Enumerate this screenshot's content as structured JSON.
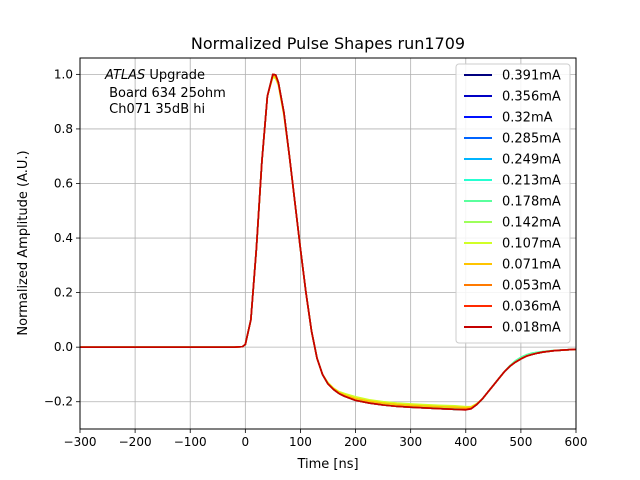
{
  "chart_data": {
    "type": "line",
    "title": "Normalized Pulse Shapes run1709",
    "xlabel": "Time [ns]",
    "ylabel": "Normalized Amplitude (A.U.)",
    "xlim": [
      -300,
      600
    ],
    "ylim": [
      -0.3,
      1.06
    ],
    "xticks": [
      -300,
      -200,
      -100,
      0,
      100,
      200,
      300,
      400,
      500,
      600
    ],
    "xtick_labels": [
      "−300",
      "−200",
      "−100",
      "0",
      "100",
      "200",
      "300",
      "400",
      "500",
      "600"
    ],
    "yticks": [
      -0.2,
      0.0,
      0.2,
      0.4,
      0.6,
      0.8,
      1.0
    ],
    "ytick_labels": [
      "−0.2",
      "0.0",
      "0.2",
      "0.4",
      "0.6",
      "0.8",
      "1.0"
    ],
    "grid": true,
    "legend_position": "top-right",
    "annotation": {
      "line1_italic": "ATLAS",
      "line1_rest": " Upgrade",
      "line2": " Board 634 25ohm",
      "line3": " Ch071 35dB hi"
    },
    "x": [
      -300,
      -200,
      -100,
      -20,
      -5,
      0,
      10,
      20,
      30,
      40,
      50,
      55,
      60,
      70,
      80,
      90,
      100,
      110,
      120,
      130,
      140,
      150,
      160,
      170,
      180,
      200,
      225,
      250,
      275,
      300,
      350,
      380,
      400,
      410,
      420,
      430,
      440,
      450,
      460,
      470,
      480,
      490,
      500,
      510,
      520,
      530,
      540,
      560,
      580,
      600
    ],
    "series": [
      {
        "name": "0.391mA",
        "color": "#00007f",
        "values": [
          0.0,
          0.0,
          0.0,
          0.0,
          0.002,
          0.01,
          0.1,
          0.36,
          0.68,
          0.92,
          1.0,
          0.998,
          0.97,
          0.86,
          0.7,
          0.53,
          0.36,
          0.2,
          0.06,
          -0.04,
          -0.1,
          -0.135,
          -0.155,
          -0.17,
          -0.18,
          -0.195,
          -0.205,
          -0.212,
          -0.217,
          -0.22,
          -0.225,
          -0.228,
          -0.228,
          -0.225,
          -0.21,
          -0.19,
          -0.165,
          -0.14,
          -0.115,
          -0.09,
          -0.07,
          -0.055,
          -0.043,
          -0.033,
          -0.027,
          -0.022,
          -0.018,
          -0.013,
          -0.01,
          -0.008
        ]
      },
      {
        "name": "0.356mA",
        "color": "#0000c4",
        "values": [
          0.0,
          0.0,
          0.0,
          0.0,
          0.002,
          0.01,
          0.1,
          0.36,
          0.68,
          0.92,
          1.0,
          0.998,
          0.97,
          0.86,
          0.7,
          0.53,
          0.36,
          0.2,
          0.06,
          -0.04,
          -0.1,
          -0.135,
          -0.155,
          -0.17,
          -0.18,
          -0.195,
          -0.205,
          -0.212,
          -0.217,
          -0.22,
          -0.225,
          -0.228,
          -0.228,
          -0.225,
          -0.21,
          -0.19,
          -0.165,
          -0.14,
          -0.115,
          -0.09,
          -0.07,
          -0.055,
          -0.043,
          -0.033,
          -0.027,
          -0.022,
          -0.018,
          -0.013,
          -0.01,
          -0.008
        ]
      },
      {
        "name": "0.32mA",
        "color": "#0010ff",
        "values": [
          0.0,
          0.0,
          0.0,
          0.0,
          0.002,
          0.01,
          0.1,
          0.36,
          0.68,
          0.92,
          1.0,
          0.998,
          0.97,
          0.86,
          0.7,
          0.53,
          0.36,
          0.2,
          0.06,
          -0.04,
          -0.1,
          -0.135,
          -0.155,
          -0.17,
          -0.18,
          -0.195,
          -0.205,
          -0.212,
          -0.217,
          -0.22,
          -0.225,
          -0.228,
          -0.228,
          -0.225,
          -0.21,
          -0.19,
          -0.165,
          -0.14,
          -0.115,
          -0.09,
          -0.07,
          -0.055,
          -0.043,
          -0.033,
          -0.027,
          -0.022,
          -0.018,
          -0.013,
          -0.01,
          -0.008
        ]
      },
      {
        "name": "0.285mA",
        "color": "#0064ff",
        "values": [
          0.0,
          0.0,
          0.0,
          0.0,
          0.002,
          0.01,
          0.1,
          0.36,
          0.68,
          0.92,
          1.0,
          0.998,
          0.97,
          0.86,
          0.7,
          0.53,
          0.36,
          0.2,
          0.06,
          -0.04,
          -0.1,
          -0.135,
          -0.155,
          -0.17,
          -0.18,
          -0.195,
          -0.205,
          -0.212,
          -0.217,
          -0.22,
          -0.225,
          -0.228,
          -0.228,
          -0.225,
          -0.21,
          -0.19,
          -0.165,
          -0.14,
          -0.115,
          -0.09,
          -0.07,
          -0.055,
          -0.043,
          -0.033,
          -0.027,
          -0.022,
          -0.018,
          -0.013,
          -0.01,
          -0.008
        ]
      },
      {
        "name": "0.249mA",
        "color": "#00b4ff",
        "values": [
          0.0,
          0.0,
          0.0,
          0.0,
          0.002,
          0.01,
          0.1,
          0.36,
          0.68,
          0.92,
          1.0,
          0.998,
          0.97,
          0.86,
          0.7,
          0.53,
          0.36,
          0.2,
          0.06,
          -0.04,
          -0.1,
          -0.135,
          -0.155,
          -0.17,
          -0.18,
          -0.195,
          -0.205,
          -0.212,
          -0.217,
          -0.22,
          -0.225,
          -0.228,
          -0.228,
          -0.225,
          -0.21,
          -0.19,
          -0.165,
          -0.14,
          -0.115,
          -0.09,
          -0.07,
          -0.053,
          -0.04,
          -0.03,
          -0.024,
          -0.02,
          -0.017,
          -0.013,
          -0.01,
          -0.008
        ]
      },
      {
        "name": "0.213mA",
        "color": "#26ffd1",
        "values": [
          0.0,
          0.0,
          0.0,
          0.0,
          0.002,
          0.01,
          0.1,
          0.36,
          0.68,
          0.92,
          1.0,
          0.998,
          0.97,
          0.86,
          0.7,
          0.53,
          0.36,
          0.2,
          0.06,
          -0.04,
          -0.1,
          -0.135,
          -0.155,
          -0.17,
          -0.18,
          -0.195,
          -0.205,
          -0.212,
          -0.217,
          -0.22,
          -0.225,
          -0.228,
          -0.228,
          -0.225,
          -0.21,
          -0.19,
          -0.165,
          -0.14,
          -0.115,
          -0.09,
          -0.068,
          -0.05,
          -0.037,
          -0.028,
          -0.022,
          -0.019,
          -0.016,
          -0.012,
          -0.01,
          -0.008
        ]
      },
      {
        "name": "0.178mA",
        "color": "#5aff9d",
        "values": [
          0.0,
          0.0,
          0.0,
          0.0,
          0.002,
          0.01,
          0.1,
          0.36,
          0.68,
          0.92,
          1.0,
          0.998,
          0.97,
          0.86,
          0.7,
          0.53,
          0.36,
          0.2,
          0.06,
          -0.04,
          -0.1,
          -0.135,
          -0.155,
          -0.17,
          -0.18,
          -0.195,
          -0.205,
          -0.212,
          -0.217,
          -0.22,
          -0.225,
          -0.228,
          -0.228,
          -0.225,
          -0.21,
          -0.19,
          -0.165,
          -0.14,
          -0.115,
          -0.09,
          -0.068,
          -0.05,
          -0.037,
          -0.028,
          -0.022,
          -0.019,
          -0.016,
          -0.012,
          -0.01,
          -0.008
        ]
      },
      {
        "name": "0.142mA",
        "color": "#9dff5a",
        "values": [
          0.0,
          0.0,
          0.0,
          0.0,
          0.002,
          0.01,
          0.1,
          0.36,
          0.68,
          0.92,
          1.0,
          0.998,
          0.97,
          0.86,
          0.7,
          0.53,
          0.36,
          0.2,
          0.06,
          -0.04,
          -0.1,
          -0.135,
          -0.155,
          -0.168,
          -0.176,
          -0.19,
          -0.2,
          -0.207,
          -0.212,
          -0.215,
          -0.22,
          -0.222,
          -0.224,
          -0.222,
          -0.21,
          -0.19,
          -0.165,
          -0.14,
          -0.115,
          -0.09,
          -0.07,
          -0.055,
          -0.043,
          -0.033,
          -0.027,
          -0.022,
          -0.018,
          -0.013,
          -0.01,
          -0.008
        ]
      },
      {
        "name": "0.107mA",
        "color": "#d1ff26",
        "values": [
          0.0,
          0.0,
          0.0,
          0.0,
          0.002,
          0.01,
          0.1,
          0.36,
          0.68,
          0.92,
          0.99,
          0.985,
          0.96,
          0.85,
          0.7,
          0.53,
          0.36,
          0.2,
          0.06,
          -0.04,
          -0.1,
          -0.13,
          -0.15,
          -0.163,
          -0.17,
          -0.182,
          -0.193,
          -0.2,
          -0.205,
          -0.208,
          -0.213,
          -0.215,
          -0.218,
          -0.218,
          -0.207,
          -0.19,
          -0.165,
          -0.14,
          -0.115,
          -0.09,
          -0.07,
          -0.055,
          -0.043,
          -0.033,
          -0.027,
          -0.022,
          -0.018,
          -0.013,
          -0.01,
          -0.008
        ]
      },
      {
        "name": "0.071mA",
        "color": "#ffc400",
        "values": [
          0.0,
          0.0,
          0.0,
          0.0,
          0.002,
          0.01,
          0.1,
          0.36,
          0.68,
          0.92,
          0.995,
          0.99,
          0.965,
          0.855,
          0.7,
          0.53,
          0.36,
          0.2,
          0.06,
          -0.04,
          -0.1,
          -0.133,
          -0.152,
          -0.166,
          -0.175,
          -0.188,
          -0.198,
          -0.205,
          -0.21,
          -0.213,
          -0.218,
          -0.22,
          -0.222,
          -0.22,
          -0.208,
          -0.19,
          -0.165,
          -0.14,
          -0.115,
          -0.09,
          -0.07,
          -0.055,
          -0.043,
          -0.033,
          -0.027,
          -0.022,
          -0.018,
          -0.013,
          -0.01,
          -0.008
        ]
      },
      {
        "name": "0.053mA",
        "color": "#ff7a00",
        "values": [
          0.0,
          0.0,
          0.0,
          0.0,
          0.002,
          0.01,
          0.1,
          0.36,
          0.68,
          0.92,
          1.0,
          0.998,
          0.97,
          0.86,
          0.7,
          0.53,
          0.36,
          0.2,
          0.06,
          -0.04,
          -0.1,
          -0.135,
          -0.155,
          -0.17,
          -0.18,
          -0.195,
          -0.205,
          -0.212,
          -0.217,
          -0.22,
          -0.225,
          -0.228,
          -0.228,
          -0.225,
          -0.21,
          -0.19,
          -0.165,
          -0.14,
          -0.115,
          -0.09,
          -0.07,
          -0.055,
          -0.043,
          -0.033,
          -0.027,
          -0.022,
          -0.018,
          -0.013,
          -0.01,
          -0.008
        ]
      },
      {
        "name": "0.036mA",
        "color": "#ff2a00",
        "values": [
          0.0,
          0.0,
          0.0,
          0.0,
          0.002,
          0.01,
          0.1,
          0.36,
          0.68,
          0.92,
          1.0,
          0.998,
          0.97,
          0.86,
          0.7,
          0.53,
          0.36,
          0.2,
          0.06,
          -0.04,
          -0.1,
          -0.135,
          -0.155,
          -0.17,
          -0.18,
          -0.195,
          -0.205,
          -0.212,
          -0.217,
          -0.22,
          -0.225,
          -0.228,
          -0.228,
          -0.225,
          -0.21,
          -0.19,
          -0.165,
          -0.14,
          -0.115,
          -0.09,
          -0.07,
          -0.055,
          -0.043,
          -0.033,
          -0.027,
          -0.022,
          -0.018,
          -0.013,
          -0.01,
          -0.008
        ]
      },
      {
        "name": "0.018mA",
        "color": "#c40000",
        "values": [
          0.0,
          0.0,
          0.0,
          0.0,
          0.002,
          0.01,
          0.1,
          0.36,
          0.68,
          0.92,
          1.0,
          0.998,
          0.97,
          0.86,
          0.7,
          0.53,
          0.36,
          0.2,
          0.06,
          -0.04,
          -0.1,
          -0.135,
          -0.155,
          -0.17,
          -0.18,
          -0.195,
          -0.205,
          -0.212,
          -0.217,
          -0.22,
          -0.225,
          -0.228,
          -0.23,
          -0.226,
          -0.21,
          -0.19,
          -0.165,
          -0.14,
          -0.115,
          -0.09,
          -0.07,
          -0.055,
          -0.043,
          -0.033,
          -0.027,
          -0.022,
          -0.018,
          -0.013,
          -0.01,
          -0.008
        ]
      }
    ]
  }
}
